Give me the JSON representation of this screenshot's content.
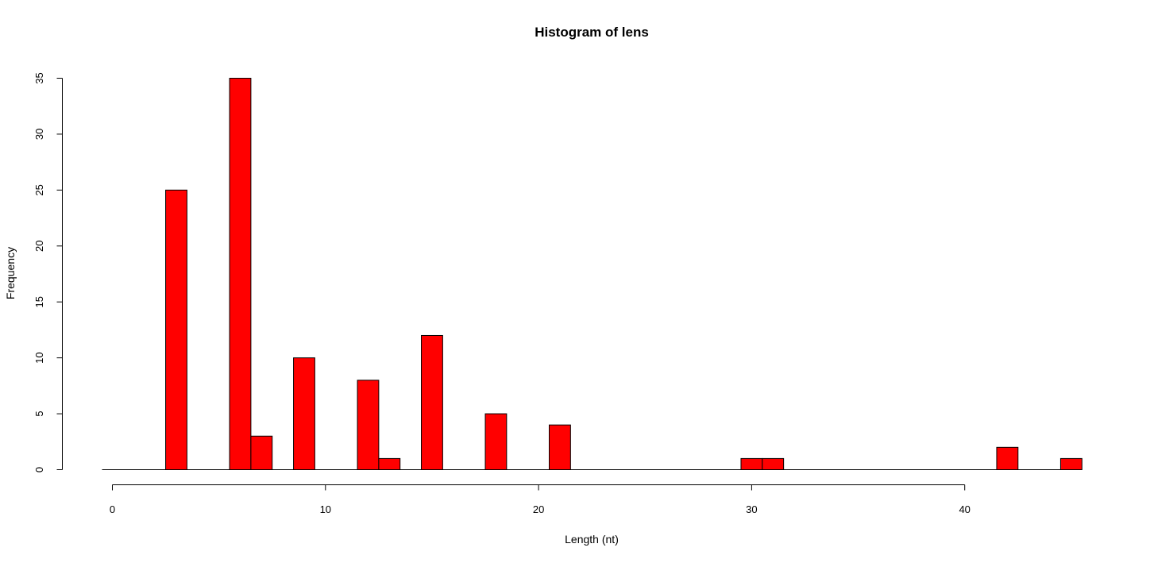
{
  "chart_data": {
    "type": "bar",
    "title": "Histogram of lens",
    "xlabel": "Length (nt)",
    "ylabel": "Frequency",
    "bar_color": "#ff0000",
    "bar_edge_color": "#000000",
    "bin_width": 1,
    "xlim": [
      0,
      46
    ],
    "ylim": [
      0,
      35
    ],
    "x_ticks": [
      0,
      10,
      20,
      30,
      40
    ],
    "y_ticks": [
      0,
      5,
      10,
      15,
      20,
      25,
      30,
      35
    ],
    "bins": [
      {
        "start": 2.5,
        "end": 3.5,
        "count": 25
      },
      {
        "start": 5.5,
        "end": 6.5,
        "count": 35
      },
      {
        "start": 6.5,
        "end": 7.5,
        "count": 3
      },
      {
        "start": 8.5,
        "end": 9.5,
        "count": 10
      },
      {
        "start": 11.5,
        "end": 12.5,
        "count": 8
      },
      {
        "start": 12.5,
        "end": 13.5,
        "count": 1
      },
      {
        "start": 14.5,
        "end": 15.5,
        "count": 12
      },
      {
        "start": 17.5,
        "end": 18.5,
        "count": 5
      },
      {
        "start": 20.5,
        "end": 21.5,
        "count": 4
      },
      {
        "start": 29.5,
        "end": 30.5,
        "count": 1
      },
      {
        "start": 30.5,
        "end": 31.5,
        "count": 1
      },
      {
        "start": 41.5,
        "end": 42.5,
        "count": 2
      },
      {
        "start": 44.5,
        "end": 45.5,
        "count": 1
      }
    ],
    "baseline_range": [
      0,
      45.5
    ],
    "grid": false,
    "legend": "none"
  }
}
